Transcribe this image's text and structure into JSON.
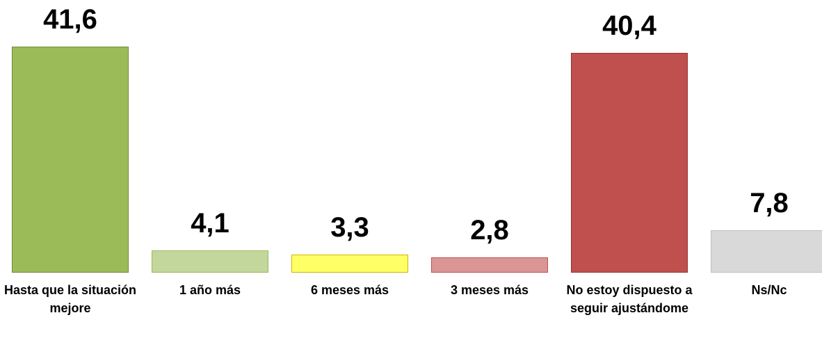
{
  "chart_data": {
    "type": "bar",
    "categories": [
      "Hasta que la situación mejore",
      "1 año más",
      "6 meses más",
      "3 meses más",
      "No estoy dispuesto a seguir ajustándome",
      "Ns/Nc"
    ],
    "values": [
      41.6,
      4.1,
      3.3,
      2.8,
      40.4,
      7.8
    ],
    "value_labels": [
      "41,6",
      "4,1",
      "3,3",
      "2,8",
      "40,4",
      "7,8"
    ],
    "colors": [
      "#9bbb59",
      "#c3d69b",
      "#ffff66",
      "#d99694",
      "#c0504d",
      "#d9d9d9"
    ]
  }
}
